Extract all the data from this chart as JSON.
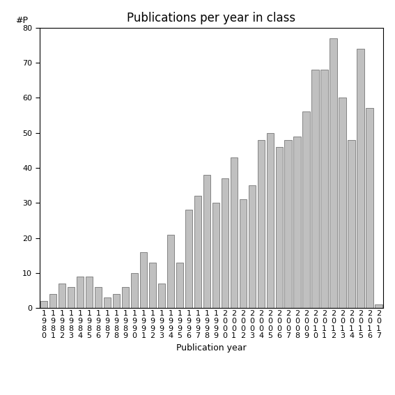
{
  "title": "Publications per year in class",
  "xlabel": "Publication year",
  "ylabel": "#P",
  "years": [
    "1980",
    "1981",
    "1982",
    "1983",
    "1984",
    "1985",
    "1986",
    "1987",
    "1988",
    "1989",
    "1990",
    "1991",
    "1992",
    "1993",
    "1994",
    "1995",
    "1996",
    "1997",
    "1998",
    "1999",
    "2000",
    "2001",
    "2002",
    "2003",
    "2004",
    "2005",
    "2006",
    "2007",
    "2008",
    "2009",
    "2010",
    "2011",
    "2012",
    "2013",
    "2014",
    "2015",
    "2016",
    "2017"
  ],
  "values": [
    2,
    4,
    7,
    6,
    9,
    9,
    6,
    3,
    4,
    6,
    10,
    16,
    13,
    7,
    21,
    13,
    28,
    32,
    38,
    30,
    37,
    43,
    31,
    35,
    48,
    50,
    46,
    48,
    49,
    56,
    68,
    68,
    77,
    60,
    48,
    74,
    57,
    1
  ],
  "bar_color": "#c0c0c0",
  "bar_edge_color": "#606060",
  "bg_color": "#ffffff",
  "ylim": [
    0,
    80
  ],
  "yticks": [
    0,
    10,
    20,
    30,
    40,
    50,
    60,
    70,
    80
  ],
  "title_fontsize": 12,
  "axis_label_fontsize": 9,
  "tick_fontsize": 8
}
